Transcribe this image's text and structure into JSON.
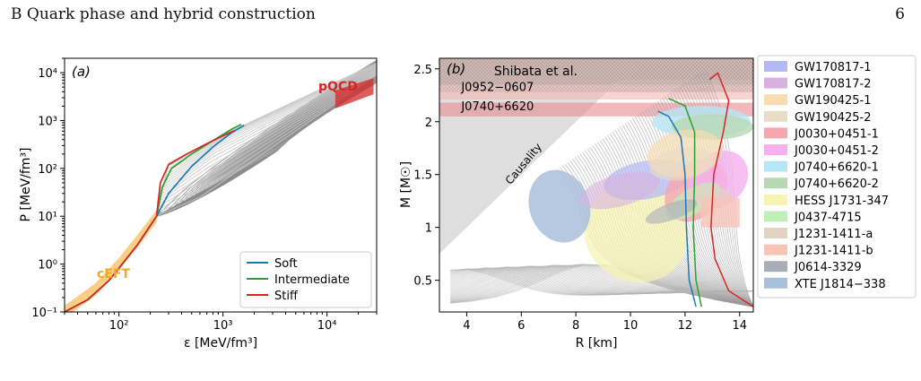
{
  "header": {
    "section": "B   Quark phase and hybrid construction",
    "page_number": "6"
  },
  "chart_data": [
    {
      "type": "line",
      "panel_label": "(a)",
      "xlabel": "ε [MeV/fm³]",
      "ylabel": "P [MeV/fm³]",
      "xscale": "log",
      "yscale": "log",
      "xlim": [
        30,
        30000
      ],
      "ylim": [
        0.1,
        20000
      ],
      "xticks": [
        "10²",
        "10³",
        "10⁴"
      ],
      "yticks": [
        "10⁻¹",
        "10⁰",
        "10¹",
        "10²",
        "10³",
        "10⁴"
      ],
      "grid": false,
      "legend_position": "bottom-right",
      "series": [
        {
          "name": "Soft",
          "color": "#1f77b4",
          "points": [
            [
              30,
              0.1
            ],
            [
              50,
              0.18
            ],
            [
              80,
              0.45
            ],
            [
              150,
              2.5
            ],
            [
              230,
              10
            ],
            [
              300,
              30
            ],
            [
              500,
              110
            ],
            [
              800,
              280
            ],
            [
              1200,
              550
            ],
            [
              1600,
              800
            ]
          ]
        },
        {
          "name": "Intermediate",
          "color": "#2ca02c",
          "points": [
            [
              30,
              0.1
            ],
            [
              50,
              0.18
            ],
            [
              80,
              0.45
            ],
            [
              150,
              2.5
            ],
            [
              230,
              10
            ],
            [
              260,
              40
            ],
            [
              320,
              100
            ],
            [
              500,
              200
            ],
            [
              800,
              380
            ],
            [
              1200,
              650
            ],
            [
              1500,
              830
            ]
          ]
        },
        {
          "name": "Stiff",
          "color": "#d62728",
          "points": [
            [
              30,
              0.1
            ],
            [
              50,
              0.18
            ],
            [
              80,
              0.45
            ],
            [
              150,
              2.5
            ],
            [
              230,
              10
            ],
            [
              250,
              50
            ],
            [
              300,
              120
            ],
            [
              450,
              200
            ],
            [
              700,
              330
            ],
            [
              1000,
              480
            ],
            [
              1300,
              620
            ]
          ]
        }
      ],
      "bands": [
        {
          "label": "cEFT",
          "color": "#f5a623",
          "points": [
            [
              30,
              0.1
            ],
            [
              60,
              0.3
            ],
            [
              100,
              1
            ],
            [
              150,
              3
            ],
            [
              230,
              10
            ]
          ]
        },
        {
          "label": "pQCD",
          "color": "#d62728",
          "points": [
            [
              12000,
              3000
            ],
            [
              28000,
              5000
            ]
          ]
        }
      ]
    },
    {
      "type": "line",
      "panel_label": "(b)",
      "xlabel": "R [km]",
      "ylabel": "M [M☉]",
      "xlim": [
        3,
        14.5
      ],
      "ylim": [
        0.2,
        2.6
      ],
      "xticks": [
        4,
        6,
        8,
        10,
        12,
        14
      ],
      "yticks": [
        0.5,
        1,
        1.5,
        2,
        2.5
      ],
      "grid": false,
      "legend_position": "outside-right",
      "annotations": [
        {
          "text": "Shibata et al.",
          "x": 5.0,
          "y": 2.44
        },
        {
          "text": "J0952−0607",
          "x": 3.8,
          "y": 2.29
        },
        {
          "text": "J0740+6620",
          "x": 3.8,
          "y": 2.11
        },
        {
          "text": "Causality",
          "x": 5.6,
          "y": 1.4
        }
      ],
      "horizontal_bands": [
        {
          "label": "Shibata et al.",
          "ymin": 2.28,
          "ymax": 2.6,
          "color": "#b07a6e"
        },
        {
          "label": "J0952−0607",
          "ymin": 2.21,
          "ymax": 2.35,
          "color": "#f4b6b0"
        },
        {
          "label": "J0740+6620",
          "ymin": 2.05,
          "ymax": 2.18,
          "color": "#e88a90"
        }
      ],
      "series": [
        {
          "name": "Soft",
          "color": "#1f77b4",
          "points": [
            [
              12.4,
              0.25
            ],
            [
              12.15,
              0.5
            ],
            [
              12.05,
              1.0
            ],
            [
              12.0,
              1.5
            ],
            [
              11.85,
              1.85
            ],
            [
              11.4,
              2.05
            ],
            [
              11.0,
              2.1
            ]
          ]
        },
        {
          "name": "Intermediate",
          "color": "#2ca02c",
          "points": [
            [
              12.6,
              0.25
            ],
            [
              12.4,
              0.5
            ],
            [
              12.3,
              1.0
            ],
            [
              12.35,
              1.5
            ],
            [
              12.35,
              1.9
            ],
            [
              12.0,
              2.15
            ],
            [
              11.4,
              2.22
            ]
          ]
        },
        {
          "name": "Stiff",
          "color": "#d62728",
          "points": [
            [
              14.5,
              0.25
            ],
            [
              13.6,
              0.4
            ],
            [
              13.1,
              0.7
            ],
            [
              12.95,
              1.0
            ],
            [
              13.05,
              1.5
            ],
            [
              13.4,
              1.9
            ],
            [
              13.6,
              2.2
            ],
            [
              13.2,
              2.46
            ],
            [
              12.9,
              2.4
            ]
          ]
        }
      ],
      "legend_entries": [
        {
          "name": "GW170817-1",
          "color": "#b4b8f2"
        },
        {
          "name": "GW170817-2",
          "color": "#d8b2de"
        },
        {
          "name": "GW190425-1",
          "color": "#f8dcb0"
        },
        {
          "name": "GW190425-2",
          "color": "#e9dcc4"
        },
        {
          "name": "J0030+0451-1",
          "color": "#f6a6ae"
        },
        {
          "name": "J0030+0451-2",
          "color": "#f5b0f0"
        },
        {
          "name": "J0740+6620-1",
          "color": "#b6e6f5"
        },
        {
          "name": "J0740+6620-2",
          "color": "#b8d8b4"
        },
        {
          "name": "HESS J1731-347",
          "color": "#f7f4ae"
        },
        {
          "name": "J0437-4715",
          "color": "#bff0b8"
        },
        {
          "name": "J1231-1411-a",
          "color": "#e2d2c2"
        },
        {
          "name": "J1231-1411-b",
          "color": "#f7c4b6"
        },
        {
          "name": "J0614-3329",
          "color": "#a8adba"
        },
        {
          "name": "XTE J1814−338",
          "color": "#a9c0dc"
        }
      ]
    }
  ]
}
